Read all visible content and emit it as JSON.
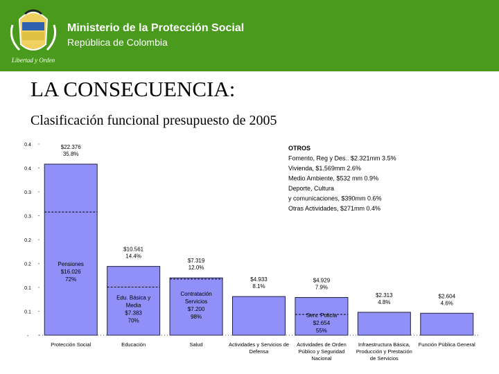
{
  "header": {
    "ministry": "Ministerio de la Protección Social",
    "country": "República de Colombia"
  },
  "chart_data": {
    "type": "bar",
    "title": "LA CONSECUENCIA:",
    "subtitle": "Clasificación funcional presupuesto de 2005",
    "categories": [
      "Protección Social",
      "Educación",
      "Salud",
      "Actividades y Servicios de Defensa",
      "Actividades de Orden Público y Seguridad Nacional",
      "Infraestructura Básica, Producción y Prestación de Servicios",
      "Función Pública General"
    ],
    "values": [
      0.358,
      0.144,
      0.12,
      0.081,
      0.079,
      0.048,
      0.046
    ],
    "value_labels": [
      "$22.376 35.8%",
      "$10.561 14.4%",
      "$7.319 12.0%",
      "$4.933 8.1%",
      "$4.929 7.9%",
      "$2.313 4.8%",
      "$2.604 4.6%"
    ],
    "color": "#9090f8",
    "ylim": [
      0,
      0.4
    ],
    "yticks": [
      {
        "value": 0,
        "label": "-"
      },
      {
        "value": 0.05,
        "label": "0.1"
      },
      {
        "value": 0.1,
        "label": "0.1"
      },
      {
        "value": 0.15,
        "label": "0.2"
      },
      {
        "value": 0.2,
        "label": "0.2"
      },
      {
        "value": 0.25,
        "label": "0.3"
      },
      {
        "value": 0.3,
        "label": "0.3"
      },
      {
        "value": 0.35,
        "label": "0.4"
      },
      {
        "value": 0.4,
        "label": "0.4"
      }
    ],
    "inner": [
      {
        "lines": [
          "Pensiones",
          "$16.026"
        ],
        "share": 72,
        "share_label": "72%"
      },
      {
        "lines": [
          "Edu. Básica y",
          "Media",
          "$7.383"
        ],
        "share": 70,
        "share_label": "70%"
      },
      {
        "lines": [
          "Contratación",
          "Servicios",
          "$7.200"
        ],
        "share": 98,
        "share_label": "98%"
      },
      null,
      {
        "lines": [
          "Serv. Policía",
          "$2.654"
        ],
        "share": 55,
        "share_label": "55%"
      },
      null,
      null
    ],
    "notes": [
      "OTROS",
      "Fomento, Reg y Des.. $2.321mm 3.5%",
      "Vivienda, $1.569mm 2.6%",
      "Medio Ambiente, $532 mm 0.9%",
      "Deporte, Cultura",
      "y comunicaciones, $390mm 0.6%",
      "Otras Actividades, $271mm 0.4%"
    ]
  }
}
